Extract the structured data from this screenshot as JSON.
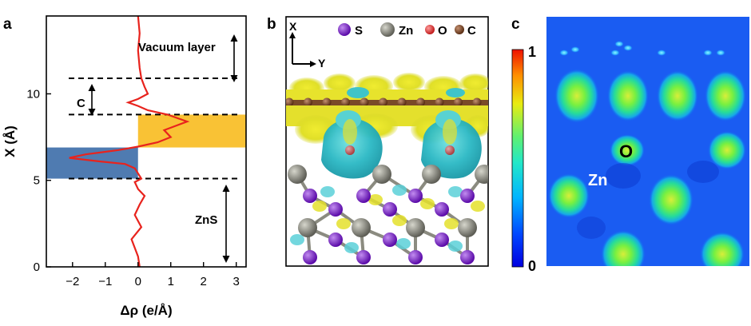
{
  "panel_labels": {
    "a": "a",
    "b": "b",
    "c": "c"
  },
  "chart_data": {
    "type": "line",
    "xlabel": "Δρ (e/Å)",
    "ylabel": "X (Å)",
    "xlim": [
      -2.8,
      3.3
    ],
    "ylim": [
      0,
      14.5
    ],
    "xticks": [
      "−2",
      "−1",
      "0",
      "1",
      "2",
      "3"
    ],
    "xtick_values": [
      -2,
      -1,
      0,
      1,
      2,
      3
    ],
    "yticks": [
      "0",
      "5",
      "10"
    ],
    "ytick_values": [
      0,
      5,
      10
    ],
    "series": [
      {
        "color": "#e8231d",
        "x": [
          0.05,
          0.0,
          -0.2,
          0.1,
          -0.1,
          0.05,
          0.2,
          0.0,
          -0.1,
          0.1,
          0.0,
          -0.1,
          -0.4,
          -1.2,
          -2.1,
          -1.6,
          -0.6,
          0.0,
          0.6,
          1.0,
          0.8,
          1.5,
          0.9,
          0.3,
          0.0,
          -0.3,
          0.0,
          0.3,
          0.2,
          0.1,
          0.05,
          0.0,
          0.05,
          0.0
        ],
        "y": [
          0.0,
          0.6,
          1.6,
          2.3,
          3.0,
          3.6,
          4.1,
          4.5,
          4.9,
          5.1,
          5.4,
          5.7,
          5.95,
          6.1,
          6.3,
          6.5,
          6.75,
          6.95,
          7.2,
          7.5,
          7.9,
          8.4,
          8.8,
          9.05,
          9.3,
          9.5,
          9.7,
          10.0,
          10.4,
          10.9,
          11.5,
          12.5,
          13.5,
          14.5
        ]
      }
    ],
    "dashed_lines_y": [
      5.1,
      8.8,
      10.9
    ],
    "shaded_regions": [
      {
        "y": [
          5.1,
          6.9
        ],
        "x": [
          -2.8,
          0
        ],
        "color": "#4f7bb1"
      },
      {
        "y": [
          6.9,
          8.8
        ],
        "x": [
          0,
          3.3
        ],
        "color": "#f9c235"
      }
    ],
    "annotations": [
      {
        "text": "Vacuum layer"
      },
      {
        "text": "C"
      },
      {
        "text": "ZnS"
      }
    ]
  },
  "panel_b": {
    "axis_x": "X",
    "axis_y": "Y",
    "legend": [
      {
        "label": "S",
        "color": "#7a22c7"
      },
      {
        "label": "Zn",
        "color": "#8a8a80"
      },
      {
        "label": "O",
        "color": "#e23b3b"
      },
      {
        "label": "C",
        "color": "#8a5534"
      }
    ]
  },
  "panel_c": {
    "colorbar_max": "1",
    "colorbar_min": "0",
    "atom_labels": [
      {
        "text": "O",
        "color": "#000000"
      },
      {
        "text": "Zn",
        "color": "#ffffff"
      }
    ]
  }
}
